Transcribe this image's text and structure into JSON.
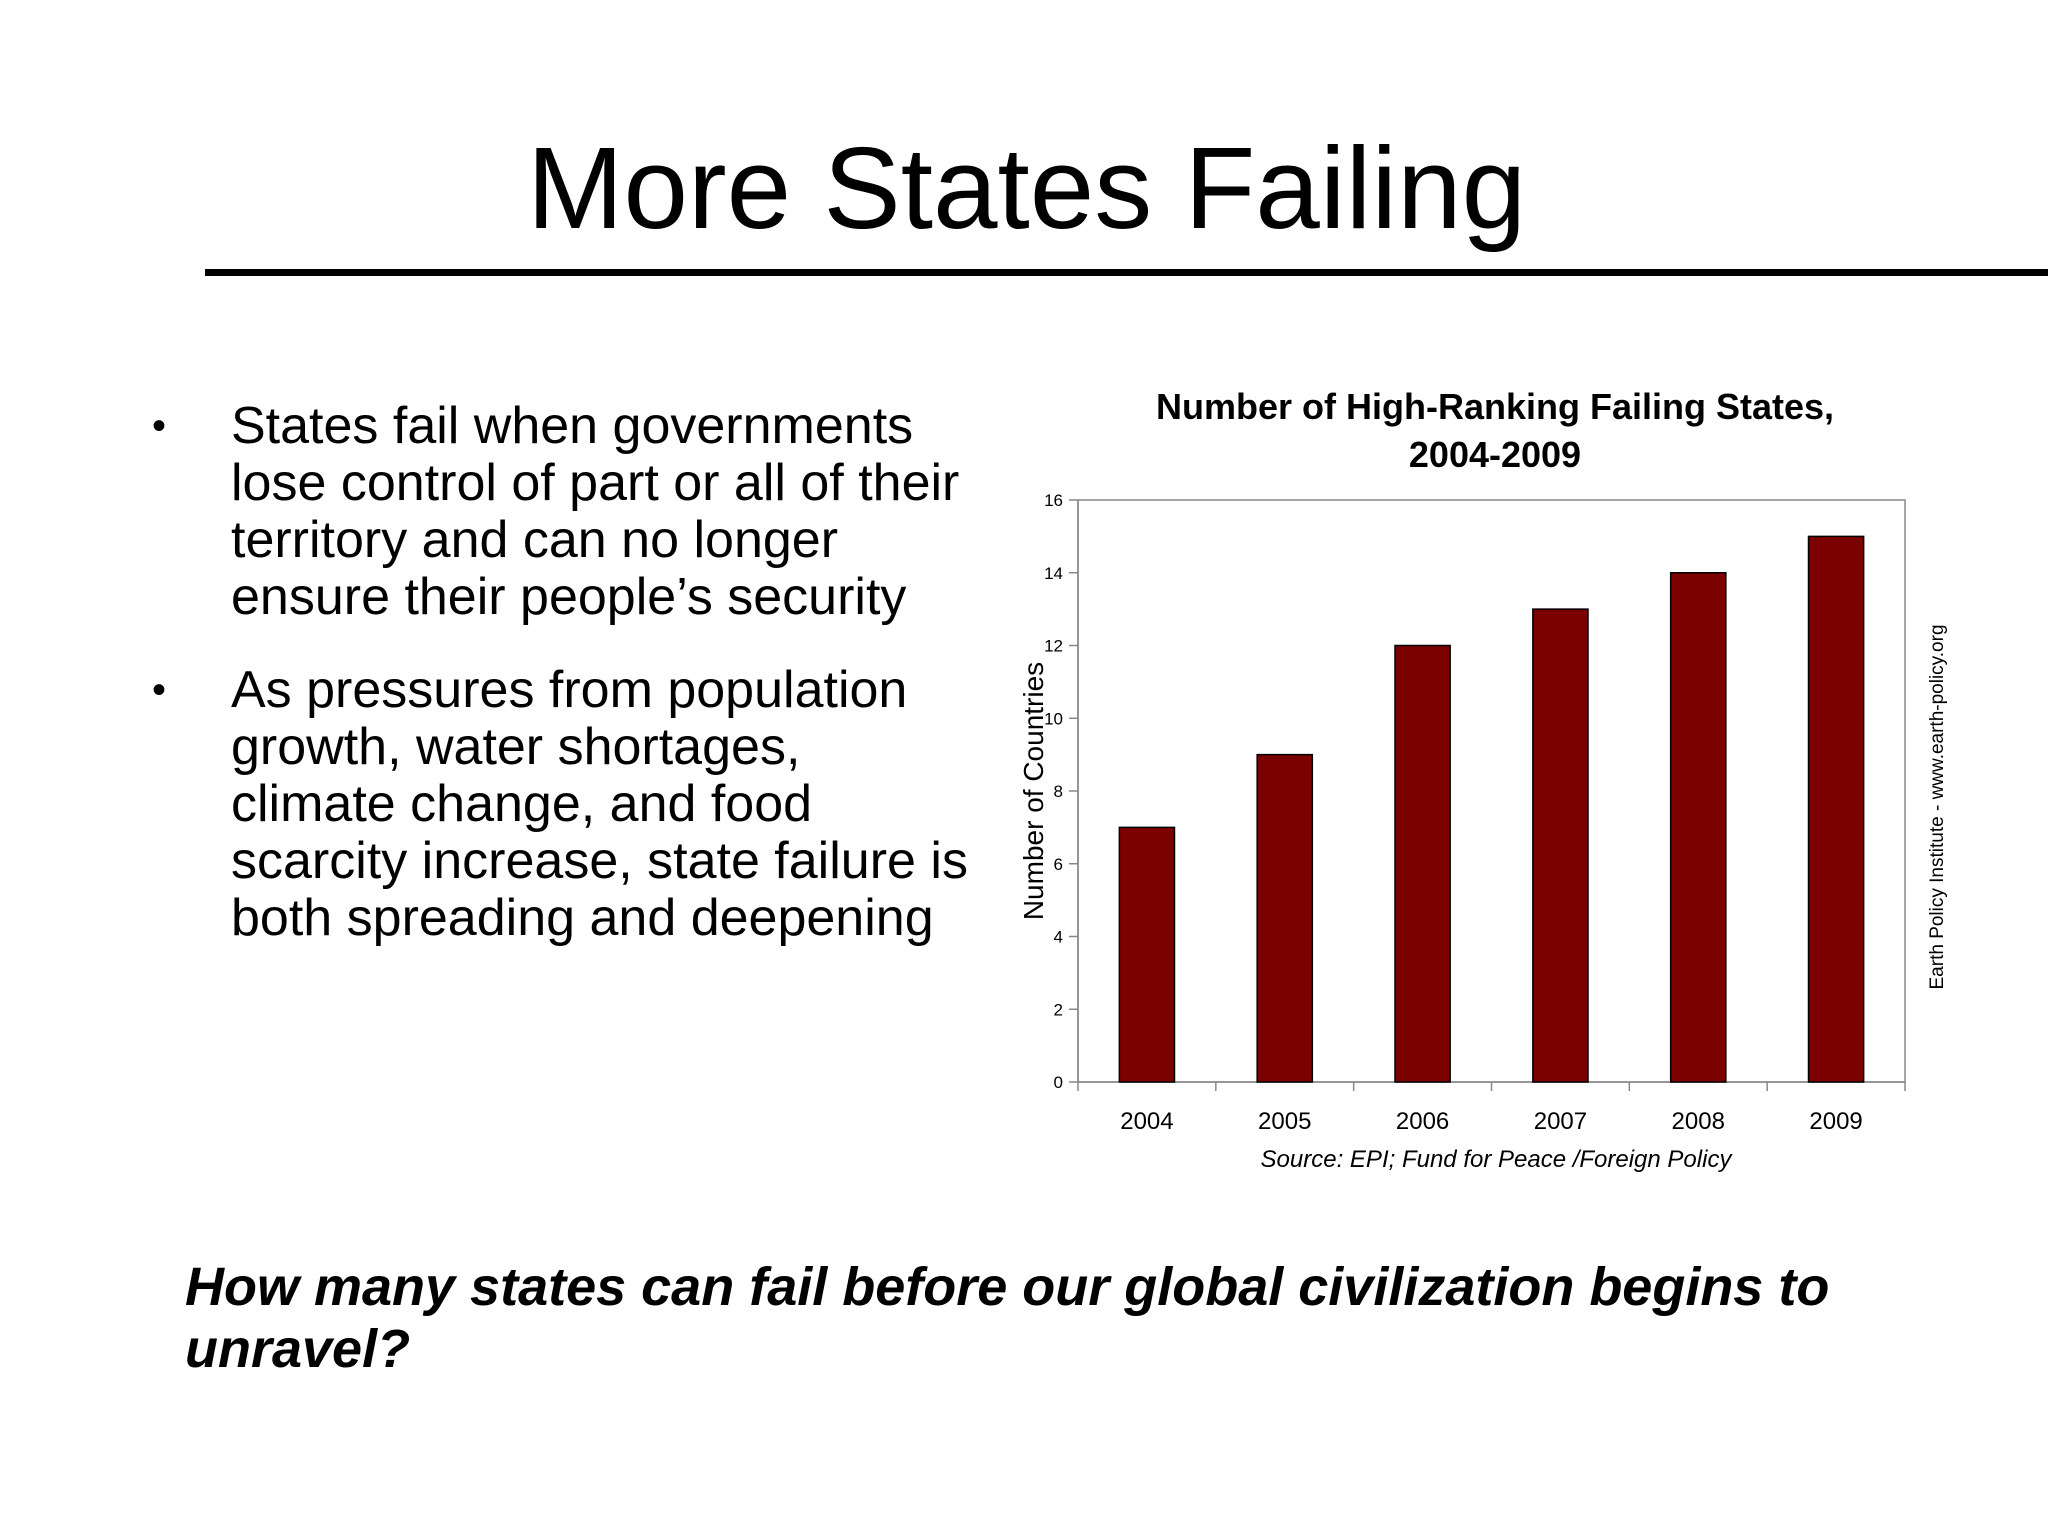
{
  "slide": {
    "title": "More States Failing",
    "bullets": [
      "States fail when governments lose control of part or all of their territory and can no longer ensure their people’s security",
      "As pressures from population growth, water shortages, climate change, and food scarcity increase, state failure is both spreading and deepening"
    ],
    "bullet_marker": "•",
    "question": "How many states can fail before our global civilization begins to unravel?"
  },
  "chart_data": {
    "type": "bar",
    "title_lines": [
      "Number of High-Ranking Failing States,",
      "2004-2009"
    ],
    "categories": [
      "2004",
      "2005",
      "2006",
      "2007",
      "2008",
      "2009"
    ],
    "values": [
      7,
      9,
      12,
      13,
      14,
      15
    ],
    "ylabel": "Number of Countries",
    "xlabel": "",
    "ylim": [
      0,
      16
    ],
    "yticks": [
      "0",
      "2",
      "4",
      "6",
      "8",
      "10",
      "12",
      "14",
      "16"
    ],
    "source": "Source: EPI; Fund for Peace /Foreign Policy",
    "side_credit": "Earth Policy Institute - www.earth-policy.org",
    "bar_color": "#7b0000",
    "grid": false,
    "legend": "none"
  }
}
